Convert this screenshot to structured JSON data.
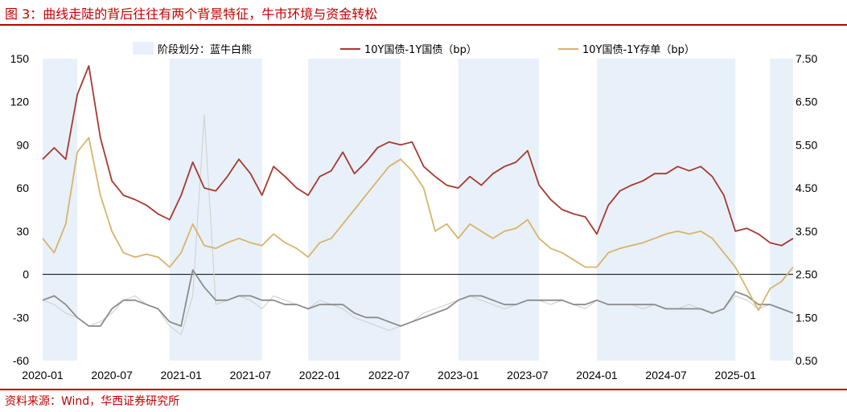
{
  "header": {
    "title": "图 3：曲线走陡的背后往往有两个背景特征，牛市环境与资金转松"
  },
  "footer": {
    "source": "资料来源：Wind，华西证券研究所"
  },
  "colors": {
    "title": "#c00000",
    "band": "#e8f1f9",
    "series_10y_1y": "#a8392e",
    "series_10y_cd": "#d8b36b",
    "series_gray_light": "#d3d3d3",
    "series_gray_dark": "#8c8c8c"
  },
  "chart_data": {
    "type": "line",
    "title": "曲线走陡的背后往往有两个背景特征，牛市环境与资金转松",
    "x_range": [
      "2020-01",
      "2025-06"
    ],
    "x_ticks": [
      "2020-01",
      "2020-07",
      "2021-01",
      "2021-07",
      "2022-01",
      "2022-07",
      "2023-01",
      "2023-07",
      "2024-01",
      "2024-07",
      "2025-01"
    ],
    "y_left": {
      "range": [
        -60,
        150
      ],
      "ticks": [
        150,
        120,
        90,
        60,
        30,
        0,
        -30,
        -60
      ]
    },
    "y_right": {
      "range": [
        0.5,
        7.5
      ],
      "ticks": [
        "7.50",
        "6.50",
        "5.50",
        "4.50",
        "3.50",
        "2.50",
        "1.50",
        "0.50"
      ]
    },
    "legend": [
      {
        "key": "band",
        "label": "阶段划分：蓝牛白熊",
        "style": "band"
      },
      {
        "key": "s1",
        "label": "10Y国债-1Y国债（bp）",
        "style": "line"
      },
      {
        "key": "s2",
        "label": "10Y国债-1Y存单（bp）",
        "style": "line"
      }
    ],
    "bands": [
      [
        "2020-01",
        "2020-04"
      ],
      [
        "2020-12",
        "2021-08"
      ],
      [
        "2021-12",
        "2022-08"
      ],
      [
        "2023-01",
        "2023-08"
      ],
      [
        "2024-01",
        "2025-01"
      ],
      [
        "2025-04",
        "2025-06"
      ]
    ],
    "series": [
      {
        "name": "10Y国债-1Y国债（bp）",
        "axis": "left",
        "color": "#a8392e",
        "points": [
          [
            "2020-01",
            80
          ],
          [
            "2020-02",
            88
          ],
          [
            "2020-03",
            80
          ],
          [
            "2020-04",
            125
          ],
          [
            "2020-05",
            145
          ],
          [
            "2020-06",
            95
          ],
          [
            "2020-07",
            65
          ],
          [
            "2020-08",
            55
          ],
          [
            "2020-09",
            52
          ],
          [
            "2020-10",
            48
          ],
          [
            "2020-11",
            42
          ],
          [
            "2020-12",
            38
          ],
          [
            "2021-01",
            55
          ],
          [
            "2021-02",
            78
          ],
          [
            "2021-03",
            60
          ],
          [
            "2021-04",
            58
          ],
          [
            "2021-05",
            68
          ],
          [
            "2021-06",
            80
          ],
          [
            "2021-07",
            70
          ],
          [
            "2021-08",
            55
          ],
          [
            "2021-09",
            75
          ],
          [
            "2021-10",
            68
          ],
          [
            "2021-11",
            60
          ],
          [
            "2021-12",
            55
          ],
          [
            "2022-01",
            68
          ],
          [
            "2022-02",
            72
          ],
          [
            "2022-03",
            85
          ],
          [
            "2022-04",
            70
          ],
          [
            "2022-05",
            78
          ],
          [
            "2022-06",
            88
          ],
          [
            "2022-07",
            92
          ],
          [
            "2022-08",
            90
          ],
          [
            "2022-09",
            92
          ],
          [
            "2022-10",
            75
          ],
          [
            "2022-11",
            68
          ],
          [
            "2022-12",
            62
          ],
          [
            "2023-01",
            60
          ],
          [
            "2023-02",
            68
          ],
          [
            "2023-03",
            62
          ],
          [
            "2023-04",
            70
          ],
          [
            "2023-05",
            75
          ],
          [
            "2023-06",
            78
          ],
          [
            "2023-07",
            86
          ],
          [
            "2023-08",
            62
          ],
          [
            "2023-09",
            52
          ],
          [
            "2023-10",
            45
          ],
          [
            "2023-11",
            42
          ],
          [
            "2023-12",
            40
          ],
          [
            "2024-01",
            28
          ],
          [
            "2024-02",
            48
          ],
          [
            "2024-03",
            58
          ],
          [
            "2024-04",
            62
          ],
          [
            "2024-05",
            65
          ],
          [
            "2024-06",
            70
          ],
          [
            "2024-07",
            70
          ],
          [
            "2024-08",
            75
          ],
          [
            "2024-09",
            72
          ],
          [
            "2024-10",
            75
          ],
          [
            "2024-11",
            68
          ],
          [
            "2024-12",
            55
          ],
          [
            "2025-01",
            30
          ],
          [
            "2025-02",
            32
          ],
          [
            "2025-03",
            28
          ],
          [
            "2025-04",
            22
          ],
          [
            "2025-05",
            20
          ],
          [
            "2025-06",
            25
          ]
        ]
      },
      {
        "name": "10Y国债-1Y存单（bp）",
        "axis": "left",
        "color": "#d8b36b",
        "points": [
          [
            "2020-01",
            25
          ],
          [
            "2020-02",
            15
          ],
          [
            "2020-03",
            35
          ],
          [
            "2020-04",
            85
          ],
          [
            "2020-05",
            95
          ],
          [
            "2020-06",
            55
          ],
          [
            "2020-07",
            30
          ],
          [
            "2020-08",
            15
          ],
          [
            "2020-09",
            12
          ],
          [
            "2020-10",
            14
          ],
          [
            "2020-11",
            12
          ],
          [
            "2020-12",
            5
          ],
          [
            "2021-01",
            15
          ],
          [
            "2021-02",
            35
          ],
          [
            "2021-03",
            20
          ],
          [
            "2021-04",
            18
          ],
          [
            "2021-05",
            22
          ],
          [
            "2021-06",
            25
          ],
          [
            "2021-07",
            22
          ],
          [
            "2021-08",
            20
          ],
          [
            "2021-09",
            28
          ],
          [
            "2021-10",
            22
          ],
          [
            "2021-11",
            18
          ],
          [
            "2021-12",
            12
          ],
          [
            "2022-01",
            22
          ],
          [
            "2022-02",
            25
          ],
          [
            "2022-03",
            35
          ],
          [
            "2022-04",
            45
          ],
          [
            "2022-05",
            55
          ],
          [
            "2022-06",
            65
          ],
          [
            "2022-07",
            75
          ],
          [
            "2022-08",
            80
          ],
          [
            "2022-09",
            72
          ],
          [
            "2022-10",
            60
          ],
          [
            "2022-11",
            30
          ],
          [
            "2022-12",
            35
          ],
          [
            "2023-01",
            25
          ],
          [
            "2023-02",
            35
          ],
          [
            "2023-03",
            30
          ],
          [
            "2023-04",
            25
          ],
          [
            "2023-05",
            30
          ],
          [
            "2023-06",
            32
          ],
          [
            "2023-07",
            38
          ],
          [
            "2023-08",
            25
          ],
          [
            "2023-09",
            18
          ],
          [
            "2023-10",
            15
          ],
          [
            "2023-11",
            10
          ],
          [
            "2023-12",
            5
          ],
          [
            "2024-01",
            5
          ],
          [
            "2024-02",
            15
          ],
          [
            "2024-03",
            18
          ],
          [
            "2024-04",
            20
          ],
          [
            "2024-05",
            22
          ],
          [
            "2024-06",
            25
          ],
          [
            "2024-07",
            28
          ],
          [
            "2024-08",
            30
          ],
          [
            "2024-09",
            28
          ],
          [
            "2024-10",
            30
          ],
          [
            "2024-11",
            25
          ],
          [
            "2024-12",
            15
          ],
          [
            "2025-01",
            5
          ],
          [
            "2025-02",
            -10
          ],
          [
            "2025-03",
            -25
          ],
          [
            "2025-04",
            -10
          ],
          [
            "2025-05",
            -5
          ],
          [
            "2025-06",
            5
          ]
        ]
      },
      {
        "name": "gray (right axis, light)",
        "axis": "right",
        "color": "#d3d3d3",
        "points": [
          [
            "2020-01",
            1.9
          ],
          [
            "2020-02",
            1.8
          ],
          [
            "2020-03",
            1.6
          ],
          [
            "2020-04",
            1.5
          ],
          [
            "2020-05",
            1.3
          ],
          [
            "2020-06",
            1.4
          ],
          [
            "2020-07",
            1.6
          ],
          [
            "2020-08",
            1.9
          ],
          [
            "2020-09",
            2.0
          ],
          [
            "2020-10",
            1.8
          ],
          [
            "2020-11",
            1.7
          ],
          [
            "2020-12",
            1.3
          ],
          [
            "2021-01",
            1.1
          ],
          [
            "2021-02",
            2.0
          ],
          [
            "2021-03",
            6.2
          ],
          [
            "2021-04",
            1.8
          ],
          [
            "2021-05",
            1.9
          ],
          [
            "2021-06",
            2.0
          ],
          [
            "2021-07",
            1.9
          ],
          [
            "2021-08",
            1.7
          ],
          [
            "2021-09",
            2.0
          ],
          [
            "2021-10",
            1.9
          ],
          [
            "2021-11",
            1.8
          ],
          [
            "2021-12",
            1.7
          ],
          [
            "2022-01",
            1.9
          ],
          [
            "2022-02",
            1.8
          ],
          [
            "2022-03",
            1.7
          ],
          [
            "2022-04",
            1.5
          ],
          [
            "2022-05",
            1.4
          ],
          [
            "2022-06",
            1.3
          ],
          [
            "2022-07",
            1.2
          ],
          [
            "2022-08",
            1.3
          ],
          [
            "2022-09",
            1.4
          ],
          [
            "2022-10",
            1.6
          ],
          [
            "2022-11",
            1.7
          ],
          [
            "2022-12",
            1.8
          ],
          [
            "2023-01",
            1.9
          ],
          [
            "2023-02",
            2.0
          ],
          [
            "2023-03",
            1.9
          ],
          [
            "2023-04",
            1.8
          ],
          [
            "2023-05",
            1.7
          ],
          [
            "2023-06",
            1.8
          ],
          [
            "2023-07",
            1.9
          ],
          [
            "2023-08",
            1.9
          ],
          [
            "2023-09",
            1.8
          ],
          [
            "2023-10",
            1.9
          ],
          [
            "2023-11",
            1.8
          ],
          [
            "2023-12",
            1.7
          ],
          [
            "2024-01",
            1.9
          ],
          [
            "2024-02",
            1.8
          ],
          [
            "2024-03",
            1.8
          ],
          [
            "2024-04",
            1.8
          ],
          [
            "2024-05",
            1.7
          ],
          [
            "2024-06",
            1.8
          ],
          [
            "2024-07",
            1.7
          ],
          [
            "2024-08",
            1.7
          ],
          [
            "2024-09",
            1.8
          ],
          [
            "2024-10",
            1.7
          ],
          [
            "2024-11",
            1.6
          ],
          [
            "2024-12",
            1.7
          ],
          [
            "2025-01",
            2.0
          ],
          [
            "2025-02",
            1.9
          ],
          [
            "2025-03",
            1.7
          ],
          [
            "2025-04",
            1.8
          ],
          [
            "2025-05",
            1.7
          ],
          [
            "2025-06",
            1.6
          ]
        ]
      },
      {
        "name": "gray (right axis, dark)",
        "axis": "right",
        "color": "#8c8c8c",
        "points": [
          [
            "2020-01",
            1.9
          ],
          [
            "2020-02",
            2.0
          ],
          [
            "2020-03",
            1.8
          ],
          [
            "2020-04",
            1.5
          ],
          [
            "2020-05",
            1.3
          ],
          [
            "2020-06",
            1.3
          ],
          [
            "2020-07",
            1.7
          ],
          [
            "2020-08",
            1.9
          ],
          [
            "2020-09",
            1.9
          ],
          [
            "2020-10",
            1.8
          ],
          [
            "2020-11",
            1.7
          ],
          [
            "2020-12",
            1.4
          ],
          [
            "2021-01",
            1.3
          ],
          [
            "2021-02",
            2.6
          ],
          [
            "2021-03",
            2.2
          ],
          [
            "2021-04",
            1.9
          ],
          [
            "2021-05",
            1.9
          ],
          [
            "2021-06",
            2.0
          ],
          [
            "2021-07",
            2.0
          ],
          [
            "2021-08",
            1.9
          ],
          [
            "2021-09",
            1.9
          ],
          [
            "2021-10",
            1.8
          ],
          [
            "2021-11",
            1.8
          ],
          [
            "2021-12",
            1.7
          ],
          [
            "2022-01",
            1.8
          ],
          [
            "2022-02",
            1.8
          ],
          [
            "2022-03",
            1.8
          ],
          [
            "2022-04",
            1.6
          ],
          [
            "2022-05",
            1.5
          ],
          [
            "2022-06",
            1.5
          ],
          [
            "2022-07",
            1.4
          ],
          [
            "2022-08",
            1.3
          ],
          [
            "2022-09",
            1.4
          ],
          [
            "2022-10",
            1.5
          ],
          [
            "2022-11",
            1.6
          ],
          [
            "2022-12",
            1.7
          ],
          [
            "2023-01",
            1.9
          ],
          [
            "2023-02",
            2.0
          ],
          [
            "2023-03",
            2.0
          ],
          [
            "2023-04",
            1.9
          ],
          [
            "2023-05",
            1.8
          ],
          [
            "2023-06",
            1.8
          ],
          [
            "2023-07",
            1.9
          ],
          [
            "2023-08",
            1.9
          ],
          [
            "2023-09",
            1.9
          ],
          [
            "2023-10",
            1.9
          ],
          [
            "2023-11",
            1.8
          ],
          [
            "2023-12",
            1.8
          ],
          [
            "2024-01",
            1.9
          ],
          [
            "2024-02",
            1.8
          ],
          [
            "2024-03",
            1.8
          ],
          [
            "2024-04",
            1.8
          ],
          [
            "2024-05",
            1.8
          ],
          [
            "2024-06",
            1.8
          ],
          [
            "2024-07",
            1.7
          ],
          [
            "2024-08",
            1.7
          ],
          [
            "2024-09",
            1.7
          ],
          [
            "2024-10",
            1.7
          ],
          [
            "2024-11",
            1.6
          ],
          [
            "2024-12",
            1.7
          ],
          [
            "2025-01",
            2.1
          ],
          [
            "2025-02",
            2.0
          ],
          [
            "2025-03",
            1.8
          ],
          [
            "2025-04",
            1.8
          ],
          [
            "2025-05",
            1.7
          ],
          [
            "2025-06",
            1.6
          ]
        ]
      }
    ]
  }
}
